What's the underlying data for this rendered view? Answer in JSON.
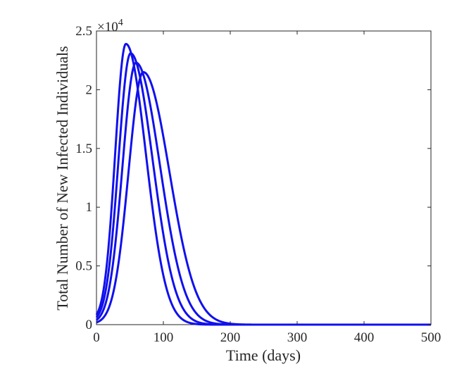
{
  "chart_data": {
    "type": "line",
    "xlabel": "Time (days)",
    "ylabel": "Total Number of New Infected Individuals",
    "exponent_label": {
      "base": "×10",
      "power": "4"
    },
    "xlim": [
      0,
      500
    ],
    "ylim": [
      0,
      2.5
    ],
    "y_scale_factor": 10000,
    "xticks": [
      0,
      100,
      200,
      300,
      400,
      500
    ],
    "xtick_labels": [
      "0",
      "100",
      "200",
      "300",
      "400",
      "500"
    ],
    "yticks": [
      0,
      0.5,
      1,
      1.5,
      2,
      2.5
    ],
    "ytick_labels": [
      "0",
      "0.5",
      "1",
      "1.5",
      "2",
      "2.5"
    ],
    "grid": false,
    "legend": "none",
    "line_color": "#1010ee",
    "series": [
      {
        "peak_x": 44,
        "peak_y": 2.39,
        "rise_sigma": 16,
        "decay_sigma": 30,
        "start_y": 0.03
      },
      {
        "peak_x": 51,
        "peak_y": 2.31,
        "rise_sigma": 18,
        "decay_sigma": 33,
        "start_y": 0.02
      },
      {
        "peak_x": 59,
        "peak_y": 2.23,
        "rise_sigma": 20,
        "decay_sigma": 36,
        "start_y": 0.01
      },
      {
        "peak_x": 70,
        "peak_y": 2.15,
        "rise_sigma": 22,
        "decay_sigma": 39,
        "start_y": 0.005
      }
    ]
  }
}
